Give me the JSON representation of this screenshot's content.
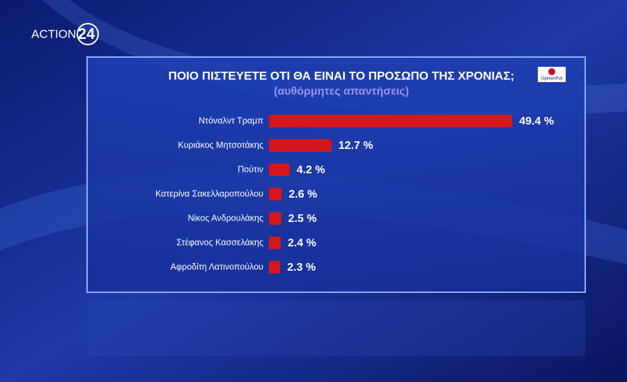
{
  "logo": {
    "channel": "ACTION",
    "number": "24",
    "pollster": "OpinionPoll"
  },
  "chart_data": {
    "type": "bar",
    "orientation": "horizontal",
    "title": "ΠΟΙΟ ΠΙΣΤΕΥΕΤΕ ΟΤΙ ΘΑ ΕΙΝΑΙ ΤΟ ΠΡΟΣΩΠΟ ΤΗΣ ΧΡΟΝΙΑΣ;",
    "subtitle": "(αυθόρμητες απαντήσεις)",
    "categories": [
      "Ντόναλντ Τραμπ",
      "Κυριάκος Μητσοτάκης",
      "Πούτιν",
      "Κατερίνα Σακελλαροπούλου",
      "Νίκος Ανδρουλάκης",
      "Στέφανος Κασσελάκης",
      "Αφροδίτη Λατινοπούλου"
    ],
    "values": [
      49.4,
      12.7,
      4.2,
      2.6,
      2.5,
      2.4,
      2.3
    ],
    "value_labels": [
      "49.4 %",
      "12.7 %",
      "4.2 %",
      "2.6 %",
      "2.5 %",
      "2.4 %",
      "2.3 %"
    ],
    "color": "#d3171c"
  }
}
